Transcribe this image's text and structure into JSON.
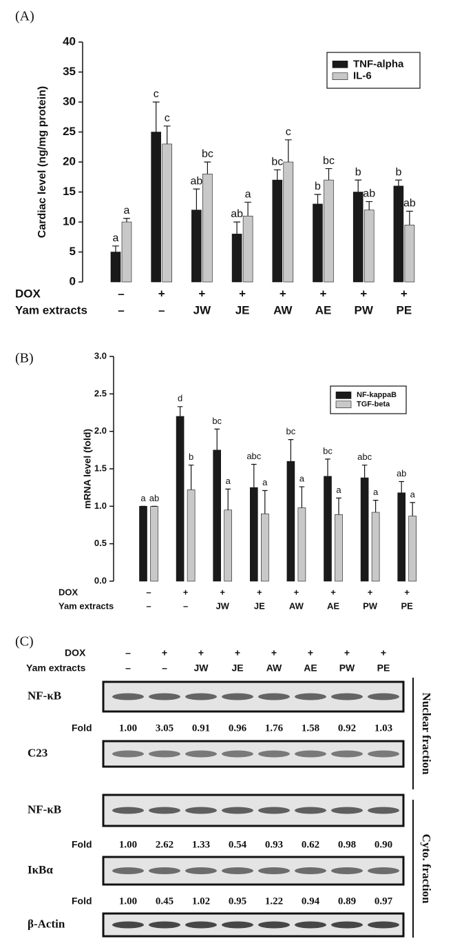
{
  "chart_data": [
    {
      "type": "bar",
      "panel_label": "(A)",
      "y_label": "Cardiac  level (ng/mg protein)",
      "row_labels": [
        "DOX",
        "Yam extracts"
      ],
      "dox": [
        "–",
        "+",
        "+",
        "+",
        "+",
        "+",
        "+",
        "+"
      ],
      "yam": [
        "–",
        "–",
        "JW",
        "JE",
        "AW",
        "AE",
        "PW",
        "PE"
      ],
      "series": [
        {
          "name": "TNF-alpha",
          "color": "#1a1a1a",
          "values": [
            5,
            25,
            12,
            8,
            17,
            13,
            15,
            16
          ],
          "errors": [
            1,
            5,
            3.5,
            2,
            1.7,
            1.6,
            2,
            1
          ],
          "letters": [
            "a",
            "c",
            "ab",
            "ab",
            "bc",
            "b",
            "b",
            "b"
          ]
        },
        {
          "name": "IL-6",
          "color": "#c8c8c8",
          "values": [
            10,
            23,
            18,
            11,
            20,
            17,
            12,
            9.5
          ],
          "errors": [
            0.6,
            3,
            2,
            2.3,
            3.7,
            1.9,
            1.4,
            2.3
          ],
          "letters": [
            "a",
            "c",
            "bc",
            "a",
            "c",
            "bc",
            "ab",
            "ab"
          ]
        }
      ],
      "ylim": [
        0,
        40
      ],
      "yticks": [
        0,
        5,
        10,
        15,
        20,
        25,
        30,
        35,
        40
      ]
    },
    {
      "type": "bar",
      "panel_label": "(B)",
      "y_label": "mRNA level (fold)",
      "row_labels": [
        "DOX",
        "Yam extracts"
      ],
      "dox": [
        "–",
        "+",
        "+",
        "+",
        "+",
        "+",
        "+",
        "+"
      ],
      "yam": [
        "–",
        "–",
        "JW",
        "JE",
        "AW",
        "AE",
        "PW",
        "PE"
      ],
      "series": [
        {
          "name": "NF-kappaB",
          "color": "#1a1a1a",
          "values": [
            1.0,
            2.2,
            1.75,
            1.25,
            1.6,
            1.4,
            1.38,
            1.18
          ],
          "errors": [
            0,
            0.13,
            0.28,
            0.31,
            0.29,
            0.23,
            0.17,
            0.15
          ],
          "letters": [
            "a",
            "d",
            "bc",
            "abc",
            "bc",
            "bc",
            "abc",
            "ab"
          ]
        },
        {
          "name": "TGF-beta",
          "color": "#c8c8c8",
          "values": [
            1.0,
            1.22,
            0.95,
            0.9,
            0.98,
            0.89,
            0.92,
            0.87
          ],
          "errors": [
            0,
            0.33,
            0.28,
            0.31,
            0.28,
            0.22,
            0.16,
            0.18
          ],
          "letters": [
            "ab",
            "b",
            "a",
            "a",
            "a",
            "a",
            "a",
            "a"
          ]
        }
      ],
      "ylim": [
        0,
        3
      ],
      "yticks": [
        {
          "value": 0,
          "label": "0.0"
        },
        0.5,
        {
          "value": 1,
          "label": "1.0"
        },
        1.5,
        {
          "value": 2,
          "label": "2.0"
        },
        2.5,
        {
          "value": 3,
          "label": "3.0"
        }
      ]
    }
  ],
  "western_blot": {
    "panel_label": "(C)",
    "row_labels": [
      "DOX",
      "Yam extracts"
    ],
    "dox": [
      "–",
      "+",
      "+",
      "+",
      "+",
      "+",
      "+",
      "+"
    ],
    "yam": [
      "–",
      "–",
      "JW",
      "JE",
      "AW",
      "AE",
      "PW",
      "PE"
    ],
    "sections": [
      "Nuclear fraction",
      "Cyto. fraction"
    ],
    "rows": [
      {
        "label": "NF-κB",
        "fold_label": "Fold",
        "folds": [
          "1.00",
          "3.05",
          "0.91",
          "0.96",
          "1.76",
          "1.58",
          "0.92",
          "1.03"
        ]
      },
      {
        "label": "C23"
      },
      {
        "label": "NF-κB",
        "fold_label": "Fold",
        "folds": [
          "1.00",
          "2.62",
          "1.33",
          "0.54",
          "0.93",
          "0.62",
          "0.98",
          "0.90"
        ]
      },
      {
        "label": "IκBα",
        "fold_label": "Fold",
        "folds": [
          "1.00",
          "0.45",
          "1.02",
          "0.95",
          "1.22",
          "0.94",
          "0.89",
          "0.97"
        ]
      },
      {
        "label": "β-Actin"
      }
    ]
  }
}
